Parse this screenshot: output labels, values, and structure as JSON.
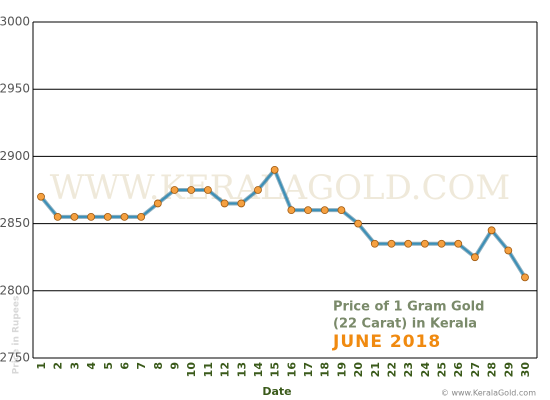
{
  "chart_data": {
    "type": "line",
    "x_label": "Date",
    "y_label": "Price in Rupees",
    "annotations": [
      "Price of 1 Gram Gold",
      "(22 Carat) in Kerala",
      "JUNE 2018"
    ],
    "watermark": "WWW.KERALAGOLD.COM",
    "credit": "© www.KeralaGold.com",
    "categories": [
      "1",
      "2",
      "3",
      "4",
      "5",
      "6",
      "7",
      "8",
      "9",
      "10",
      "11",
      "12",
      "13",
      "14",
      "15",
      "16",
      "17",
      "18",
      "19",
      "20",
      "21",
      "22",
      "23",
      "24",
      "25",
      "26",
      "27",
      "28",
      "29",
      "30"
    ],
    "series": [
      {
        "color": "#3a8fb7",
        "marker_color": "#f5a040",
        "values": [
          2870,
          2855,
          2855,
          2855,
          2855,
          2855,
          2855,
          2865,
          2875,
          2875,
          2875,
          2865,
          2865,
          2875,
          2890,
          2860,
          2860,
          2860,
          2860,
          2850,
          2835,
          2835,
          2835,
          2835,
          2835,
          2835,
          2825,
          2845,
          2830,
          2810
        ]
      }
    ],
    "ylim": [
      2750,
      3000
    ],
    "yticks": [
      2750,
      2800,
      2850,
      2900,
      2950,
      3000
    ],
    "grid": true
  }
}
